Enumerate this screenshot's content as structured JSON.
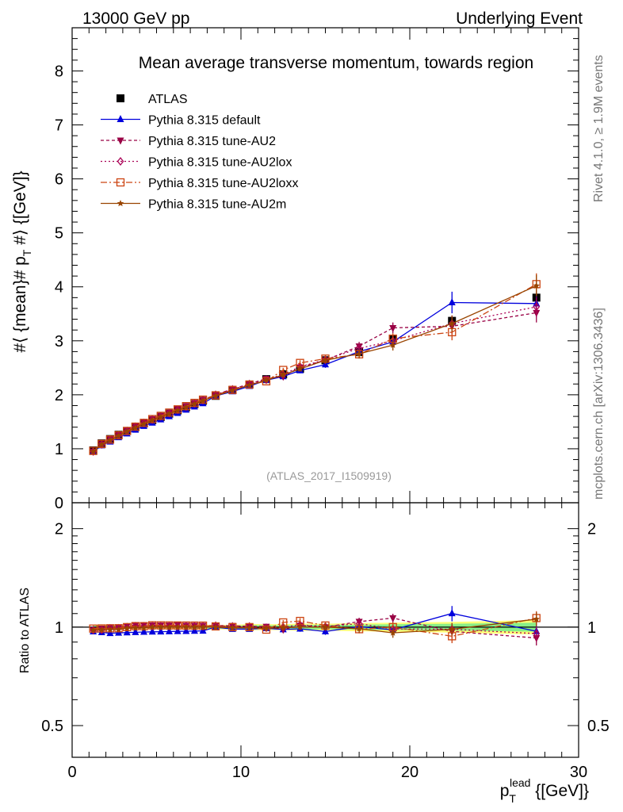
{
  "header": {
    "left": "13000 GeV pp",
    "right": "Underlying Event"
  },
  "side_labels": {
    "rivet": "Rivet 4.1.0, ≥ 1.9M events",
    "mcplots": "mcplots.cern.ch [arXiv:1306.3436]"
  },
  "colors": {
    "atlas": "#000000",
    "default": "#0000dd",
    "au2": "#990044",
    "au2lox": "#aa0055",
    "au2loxx": "#cc4411",
    "au2m": "#994400",
    "band_yellow": "#ffff77",
    "band_green": "#88ee88"
  },
  "chart_data": [
    {
      "type": "line",
      "panel": "main",
      "title": "Mean average transverse momentum, towards region",
      "watermark": "(ATLAS_2017_I1509919)",
      "ylabel": "#⟨ {mean}# p_T #⟩ {[GeV]}",
      "ylabel_parts": {
        "main": "#⟨ {mean}# p",
        "sub": "T",
        "tail": " #⟩ {[GeV]}"
      },
      "xlim": [
        0,
        30
      ],
      "ylim": [
        0,
        8.8
      ],
      "yticks": [
        0,
        1,
        2,
        3,
        4,
        5,
        6,
        7,
        8
      ],
      "x": [
        1.25,
        1.75,
        2.25,
        2.75,
        3.25,
        3.75,
        4.25,
        4.75,
        5.25,
        5.75,
        6.25,
        6.75,
        7.25,
        7.75,
        8.5,
        9.5,
        10.5,
        11.5,
        12.5,
        13.5,
        15,
        17,
        19,
        22.5,
        27.5
      ],
      "legend": [
        {
          "key": "atlas",
          "label": "ATLAS"
        },
        {
          "key": "default",
          "label": "Pythia 8.315 default"
        },
        {
          "key": "au2",
          "label": "Pythia 8.315 tune-AU2"
        },
        {
          "key": "au2lox",
          "label": "Pythia 8.315 tune-AU2lox"
        },
        {
          "key": "au2loxx",
          "label": "Pythia 8.315 tune-AU2loxx"
        },
        {
          "key": "au2m",
          "label": "Pythia 8.315 tune-AU2m"
        }
      ],
      "series": [
        {
          "key": "atlas",
          "name": "ATLAS",
          "values": [
            0.97,
            1.1,
            1.18,
            1.26,
            1.33,
            1.4,
            1.47,
            1.53,
            1.59,
            1.65,
            1.71,
            1.77,
            1.83,
            1.89,
            1.98,
            2.09,
            2.19,
            2.29,
            2.38,
            2.48,
            2.64,
            2.79,
            3.04,
            3.37,
            3.8
          ],
          "errors": [
            0.01,
            0.01,
            0.01,
            0.01,
            0.01,
            0.01,
            0.01,
            0.01,
            0.01,
            0.01,
            0.01,
            0.01,
            0.02,
            0.02,
            0.02,
            0.02,
            0.03,
            0.03,
            0.03,
            0.04,
            0.04,
            0.05,
            0.06,
            0.08,
            0.12
          ]
        },
        {
          "key": "default",
          "name": "Pythia 8.315 default",
          "values": [
            0.94,
            1.06,
            1.13,
            1.21,
            1.28,
            1.35,
            1.42,
            1.48,
            1.54,
            1.6,
            1.66,
            1.72,
            1.78,
            1.84,
            1.98,
            2.06,
            2.16,
            2.27,
            2.34,
            2.45,
            2.56,
            2.8,
            2.98,
            3.71,
            3.69
          ],
          "errors": [
            0.01,
            0.01,
            0.01,
            0.01,
            0.01,
            0.01,
            0.01,
            0.01,
            0.01,
            0.01,
            0.01,
            0.01,
            0.02,
            0.02,
            0.02,
            0.02,
            0.03,
            0.03,
            0.04,
            0.05,
            0.06,
            0.08,
            0.1,
            0.2,
            0.25
          ]
        },
        {
          "key": "au2",
          "name": "Pythia 8.315 tune-AU2",
          "values": [
            0.95,
            1.09,
            1.18,
            1.26,
            1.34,
            1.42,
            1.49,
            1.55,
            1.61,
            1.67,
            1.74,
            1.79,
            1.85,
            1.91,
            2.0,
            2.11,
            2.2,
            2.3,
            2.34,
            2.51,
            2.64,
            2.9,
            3.24,
            3.27,
            3.52
          ],
          "errors": [
            0.01,
            0.01,
            0.01,
            0.01,
            0.01,
            0.01,
            0.01,
            0.01,
            0.01,
            0.01,
            0.01,
            0.01,
            0.02,
            0.02,
            0.02,
            0.02,
            0.03,
            0.03,
            0.04,
            0.05,
            0.06,
            0.08,
            0.1,
            0.15,
            0.18
          ]
        },
        {
          "key": "au2lox",
          "name": "Pythia 8.315 tune-AU2lox",
          "values": [
            0.95,
            1.08,
            1.17,
            1.25,
            1.33,
            1.41,
            1.48,
            1.54,
            1.6,
            1.66,
            1.72,
            1.78,
            1.84,
            1.9,
            2.0,
            2.1,
            2.2,
            2.28,
            2.38,
            2.52,
            2.65,
            2.86,
            3.0,
            3.32,
            3.63
          ],
          "errors": [
            0.01,
            0.01,
            0.01,
            0.01,
            0.01,
            0.01,
            0.01,
            0.01,
            0.01,
            0.01,
            0.01,
            0.01,
            0.02,
            0.02,
            0.02,
            0.02,
            0.03,
            0.03,
            0.04,
            0.05,
            0.06,
            0.08,
            0.1,
            0.15,
            0.18
          ]
        },
        {
          "key": "au2loxx",
          "name": "Pythia 8.315 tune-AU2loxx",
          "values": [
            0.96,
            1.09,
            1.17,
            1.25,
            1.33,
            1.41,
            1.48,
            1.55,
            1.61,
            1.67,
            1.73,
            1.79,
            1.85,
            1.91,
            1.99,
            2.09,
            2.19,
            2.25,
            2.46,
            2.59,
            2.67,
            2.75,
            3.04,
            3.16,
            4.05
          ],
          "errors": [
            0.01,
            0.01,
            0.01,
            0.01,
            0.01,
            0.01,
            0.01,
            0.01,
            0.01,
            0.01,
            0.01,
            0.01,
            0.02,
            0.02,
            0.02,
            0.02,
            0.03,
            0.03,
            0.04,
            0.05,
            0.06,
            0.08,
            0.1,
            0.15,
            0.2
          ]
        },
        {
          "key": "au2m",
          "name": "Pythia 8.315 tune-AU2m",
          "values": [
            0.95,
            1.08,
            1.16,
            1.24,
            1.32,
            1.39,
            1.46,
            1.53,
            1.59,
            1.65,
            1.71,
            1.77,
            1.83,
            1.89,
            1.98,
            2.08,
            2.18,
            2.27,
            2.37,
            2.48,
            2.64,
            2.76,
            2.92,
            3.32,
            4.02
          ],
          "errors": [
            0.01,
            0.01,
            0.01,
            0.01,
            0.01,
            0.01,
            0.01,
            0.01,
            0.01,
            0.01,
            0.01,
            0.01,
            0.02,
            0.02,
            0.02,
            0.02,
            0.03,
            0.03,
            0.04,
            0.05,
            0.06,
            0.08,
            0.1,
            0.15,
            0.2
          ]
        }
      ]
    },
    {
      "type": "line",
      "panel": "ratio",
      "ylabel": "Ratio to ATLAS",
      "xlabel": "p_T^lead {[GeV]}",
      "xlabel_parts": {
        "main": "p",
        "sub": "T",
        "sup": "lead",
        "tail": " {[GeV]}"
      },
      "xlim": [
        0,
        30
      ],
      "ylim_log": [
        0.4,
        2.4
      ],
      "yticks": [
        0.5,
        1,
        2
      ],
      "ytick_labels": [
        "0.5",
        "1",
        "2"
      ],
      "xticks": [
        0,
        10,
        20,
        30
      ],
      "xtick_labels": [
        "0",
        "10",
        "20",
        "30"
      ]
    }
  ]
}
